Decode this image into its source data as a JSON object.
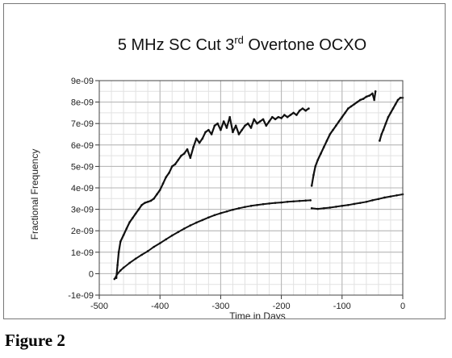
{
  "figure_caption": "Figure 2",
  "chart_data": {
    "type": "line",
    "title_main": "5 MHz SC Cut 3",
    "title_sup": "rd",
    "title_rest": " Overtone OCXO",
    "xlabel": "Time in Days",
    "ylabel": "Fractional Frequency",
    "xlim": [
      -500,
      0
    ],
    "ylim": [
      -1e-09,
      9e-09
    ],
    "x_ticks": [
      -500,
      -400,
      -300,
      -200,
      -100,
      0
    ],
    "x_tick_labels": [
      "-500",
      "-400",
      "-300",
      "-200",
      "-100",
      "0"
    ],
    "y_ticks": [
      -1e-09,
      0,
      1e-09,
      2e-09,
      3e-09,
      4e-09,
      5e-09,
      6e-09,
      7e-09,
      8e-09,
      9e-09
    ],
    "y_tick_labels": [
      "-1e-09",
      "0",
      "1e-09",
      "2e-09",
      "3e-09",
      "4e-09",
      "5e-09",
      "6e-09",
      "7e-09",
      "8e-09",
      "9e-09"
    ],
    "x_minor_step": 20,
    "y_minor_step": 5e-10,
    "grid": true,
    "series": [
      {
        "values": [
          [
            -472,
            -2e-10
          ],
          [
            -470,
            4e-10
          ],
          [
            -468,
            1e-09
          ],
          [
            -465,
            1.5e-09
          ],
          [
            -460,
            1.8e-09
          ],
          [
            -455,
            2.1e-09
          ],
          [
            -450,
            2.4e-09
          ],
          [
            -445,
            2.6e-09
          ],
          [
            -440,
            2.8e-09
          ],
          [
            -435,
            3e-09
          ],
          [
            -430,
            3.2e-09
          ],
          [
            -425,
            3.3e-09
          ],
          [
            -420,
            3.35e-09
          ],
          [
            -415,
            3.4e-09
          ],
          [
            -410,
            3.5e-09
          ],
          [
            -405,
            3.7e-09
          ],
          [
            -400,
            3.9e-09
          ],
          [
            -395,
            4.2e-09
          ],
          [
            -390,
            4.5e-09
          ],
          [
            -385,
            4.7e-09
          ],
          [
            -380,
            5e-09
          ],
          [
            -375,
            5.1e-09
          ],
          [
            -370,
            5.3e-09
          ],
          [
            -365,
            5.5e-09
          ],
          [
            -360,
            5.6e-09
          ],
          [
            -355,
            5.8e-09
          ],
          [
            -350,
            5.4e-09
          ],
          [
            -345,
            5.9e-09
          ],
          [
            -340,
            6.3e-09
          ],
          [
            -335,
            6.1e-09
          ],
          [
            -330,
            6.3e-09
          ],
          [
            -325,
            6.6e-09
          ],
          [
            -320,
            6.7e-09
          ],
          [
            -315,
            6.5e-09
          ],
          [
            -310,
            6.9e-09
          ],
          [
            -305,
            7e-09
          ],
          [
            -300,
            6.7e-09
          ],
          [
            -295,
            7.1e-09
          ],
          [
            -290,
            6.8e-09
          ],
          [
            -285,
            7.3e-09
          ],
          [
            -280,
            6.6e-09
          ],
          [
            -275,
            6.9e-09
          ],
          [
            -270,
            6.5e-09
          ],
          [
            -265,
            6.7e-09
          ],
          [
            -260,
            6.9e-09
          ],
          [
            -255,
            7e-09
          ],
          [
            -250,
            6.8e-09
          ],
          [
            -245,
            7.2e-09
          ],
          [
            -240,
            7e-09
          ],
          [
            -235,
            7.1e-09
          ],
          [
            -230,
            7.2e-09
          ],
          [
            -225,
            6.9e-09
          ],
          [
            -220,
            7.1e-09
          ],
          [
            -215,
            7.3e-09
          ],
          [
            -210,
            7.2e-09
          ],
          [
            -205,
            7.3e-09
          ],
          [
            -200,
            7.25e-09
          ],
          [
            -195,
            7.4e-09
          ],
          [
            -190,
            7.3e-09
          ],
          [
            -185,
            7.4e-09
          ],
          [
            -180,
            7.5e-09
          ],
          [
            -175,
            7.4e-09
          ],
          [
            -170,
            7.6e-09
          ],
          [
            -165,
            7.7e-09
          ],
          [
            -160,
            7.6e-09
          ],
          [
            -155,
            7.7e-09
          ]
        ]
      },
      {
        "values": [
          [
            -150,
            4.1e-09
          ],
          [
            -147,
            4.6e-09
          ],
          [
            -144,
            5e-09
          ],
          [
            -140,
            5.3e-09
          ],
          [
            -135,
            5.6e-09
          ],
          [
            -130,
            5.9e-09
          ],
          [
            -125,
            6.2e-09
          ],
          [
            -120,
            6.5e-09
          ],
          [
            -115,
            6.7e-09
          ],
          [
            -110,
            6.9e-09
          ],
          [
            -105,
            7.1e-09
          ],
          [
            -100,
            7.3e-09
          ],
          [
            -95,
            7.5e-09
          ],
          [
            -90,
            7.7e-09
          ],
          [
            -85,
            7.8e-09
          ],
          [
            -80,
            7.9e-09
          ],
          [
            -75,
            8e-09
          ],
          [
            -70,
            8.1e-09
          ],
          [
            -65,
            8.15e-09
          ],
          [
            -60,
            8.25e-09
          ],
          [
            -55,
            8.3e-09
          ],
          [
            -50,
            8.4e-09
          ],
          [
            -47,
            8.1e-09
          ],
          [
            -45,
            8.5e-09
          ]
        ]
      },
      {
        "values": [
          [
            -38,
            6.2e-09
          ],
          [
            -35,
            6.5e-09
          ],
          [
            -32,
            6.7e-09
          ],
          [
            -28,
            7e-09
          ],
          [
            -24,
            7.3e-09
          ],
          [
            -20,
            7.5e-09
          ],
          [
            -16,
            7.7e-09
          ],
          [
            -12,
            7.9e-09
          ],
          [
            -8,
            8.1e-09
          ],
          [
            -4,
            8.2e-09
          ],
          [
            0,
            8.2e-09
          ]
        ]
      },
      {
        "values": [
          [
            -475,
            -2.5e-10
          ],
          [
            -470,
            0.0
          ],
          [
            -465,
            1.5e-10
          ],
          [
            -460,
            2.8e-10
          ],
          [
            -450,
            5e-10
          ],
          [
            -440,
            7e-10
          ],
          [
            -430,
            8.8e-10
          ],
          [
            -420,
            1.05e-09
          ],
          [
            -410,
            1.25e-09
          ],
          [
            -400,
            1.42e-09
          ],
          [
            -390,
            1.6e-09
          ],
          [
            -380,
            1.78e-09
          ],
          [
            -370,
            1.94e-09
          ],
          [
            -360,
            2.1e-09
          ],
          [
            -350,
            2.25e-09
          ],
          [
            -340,
            2.38e-09
          ],
          [
            -330,
            2.5e-09
          ],
          [
            -320,
            2.62e-09
          ],
          [
            -310,
            2.73e-09
          ],
          [
            -300,
            2.82e-09
          ],
          [
            -290,
            2.9e-09
          ],
          [
            -280,
            2.98e-09
          ],
          [
            -270,
            3.05e-09
          ],
          [
            -260,
            3.11e-09
          ],
          [
            -250,
            3.16e-09
          ],
          [
            -240,
            3.2e-09
          ],
          [
            -230,
            3.24e-09
          ],
          [
            -220,
            3.27e-09
          ],
          [
            -210,
            3.3e-09
          ],
          [
            -200,
            3.32e-09
          ],
          [
            -190,
            3.35e-09
          ],
          [
            -180,
            3.37e-09
          ],
          [
            -170,
            3.39e-09
          ],
          [
            -160,
            3.41e-09
          ],
          [
            -152,
            3.42e-09
          ]
        ]
      },
      {
        "values": [
          [
            -150,
            3.05e-09
          ],
          [
            -140,
            3.02e-09
          ],
          [
            -130,
            3.05e-09
          ],
          [
            -120,
            3.08e-09
          ],
          [
            -110,
            3.12e-09
          ],
          [
            -100,
            3.16e-09
          ],
          [
            -90,
            3.2e-09
          ],
          [
            -80,
            3.25e-09
          ],
          [
            -70,
            3.3e-09
          ],
          [
            -60,
            3.35e-09
          ],
          [
            -50,
            3.42e-09
          ],
          [
            -40,
            3.48e-09
          ],
          [
            -30,
            3.55e-09
          ],
          [
            -20,
            3.6e-09
          ],
          [
            -10,
            3.65e-09
          ],
          [
            0,
            3.7e-09
          ]
        ]
      }
    ]
  }
}
